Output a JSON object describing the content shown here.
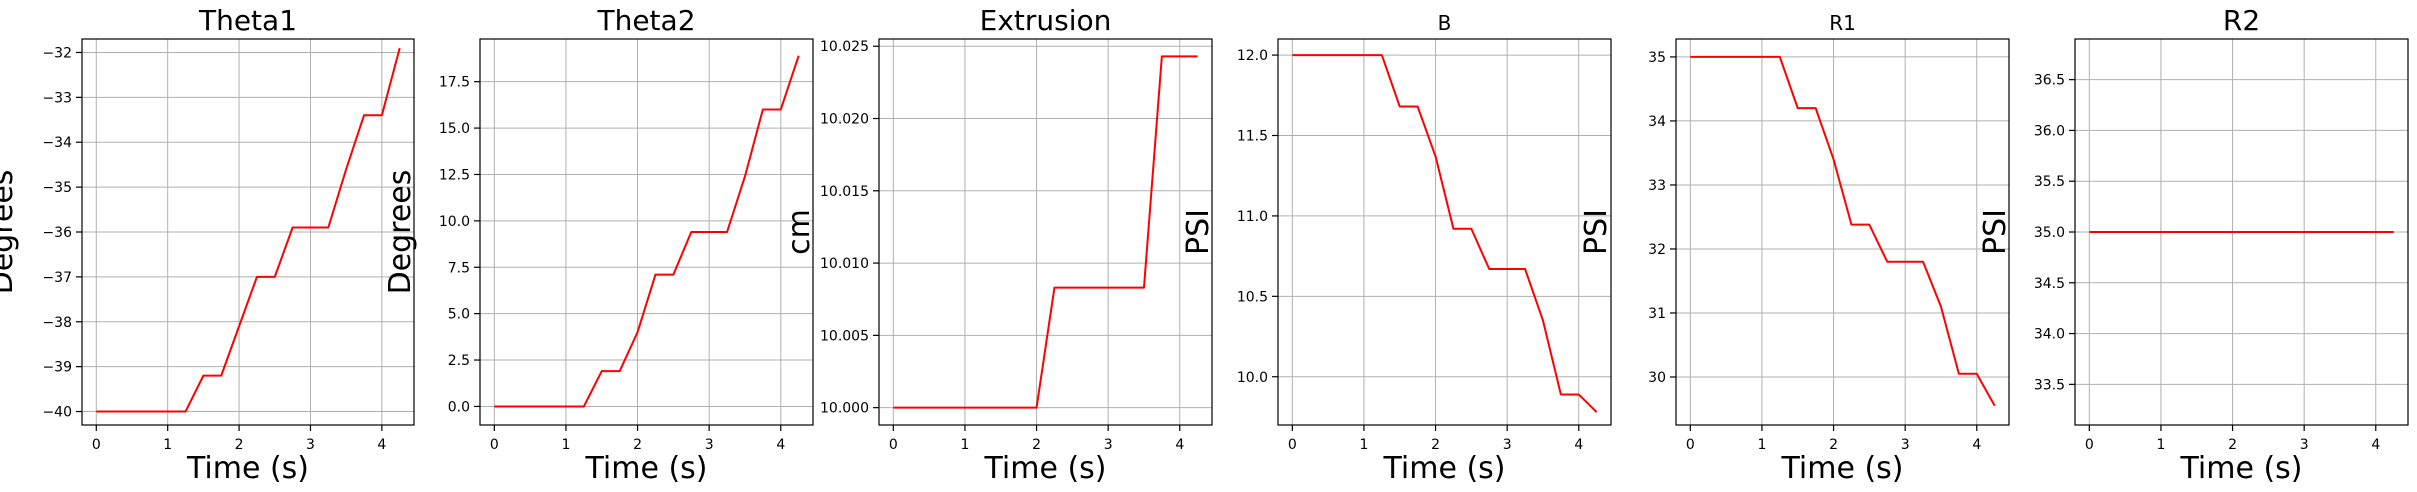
{
  "chart_data": [
    {
      "type": "line",
      "title": "Theta1",
      "xlabel": "Time (s)",
      "ylabel": "Degrees",
      "xlim": [
        -0.2,
        4.45
      ],
      "ylim": [
        -40.3,
        -31.7
      ],
      "xticks": [
        0,
        1,
        2,
        3,
        4
      ],
      "xtick_labels": [
        "0",
        "1",
        "2",
        "3",
        "4"
      ],
      "yticks": [
        -40,
        -39,
        -38,
        -37,
        -36,
        -35,
        -34,
        -33,
        -32
      ],
      "ytick_labels": [
        "−40",
        "−39",
        "−38",
        "−37",
        "−36",
        "−35",
        "−34",
        "−33",
        "−32"
      ],
      "grid": true,
      "series": [
        {
          "color": "#ff0000",
          "x": [
            0,
            1.25,
            1.5,
            1.75,
            2.0,
            2.25,
            2.5,
            2.75,
            3.0,
            3.25,
            3.5,
            3.75,
            4.0,
            4.25
          ],
          "y": [
            -40,
            -40,
            -39.2,
            -39.2,
            -38.1,
            -37.0,
            -37.0,
            -35.9,
            -35.9,
            -35.9,
            -34.6,
            -33.4,
            -33.4,
            -31.9
          ]
        }
      ]
    },
    {
      "type": "line",
      "title": "Theta2",
      "xlabel": "Time (s)",
      "ylabel": "Degrees",
      "xlim": [
        -0.2,
        4.45
      ],
      "ylim": [
        -1.0,
        19.8
      ],
      "xticks": [
        0,
        1,
        2,
        3,
        4
      ],
      "xtick_labels": [
        "0",
        "1",
        "2",
        "3",
        "4"
      ],
      "yticks": [
        0,
        2.5,
        5,
        7.5,
        10,
        12.5,
        15,
        17.5
      ],
      "ytick_labels": [
        "0.0",
        "2.5",
        "5.0",
        "7.5",
        "10.0",
        "12.5",
        "15.0",
        "17.5"
      ],
      "grid": true,
      "series": [
        {
          "color": "#ff0000",
          "x": [
            0,
            1.25,
            1.5,
            1.75,
            2.0,
            2.25,
            2.5,
            2.75,
            3.0,
            3.25,
            3.5,
            3.75,
            4.0,
            4.25
          ],
          "y": [
            0,
            0,
            1.9,
            1.9,
            4.0,
            7.1,
            7.1,
            9.4,
            9.4,
            9.4,
            12.4,
            16.0,
            16.0,
            18.9
          ]
        }
      ]
    },
    {
      "type": "line",
      "title": "Extrusion",
      "xlabel": "Time (s)",
      "ylabel": "cm",
      "xlim": [
        -0.2,
        4.45
      ],
      "ylim": [
        9.9988,
        10.0255
      ],
      "xticks": [
        0,
        1,
        2,
        3,
        4
      ],
      "xtick_labels": [
        "0",
        "1",
        "2",
        "3",
        "4"
      ],
      "yticks": [
        10.0,
        10.005,
        10.01,
        10.015,
        10.02,
        10.025
      ],
      "ytick_labels": [
        "10.000",
        "10.005",
        "10.010",
        "10.015",
        "10.020",
        "10.025"
      ],
      "grid": true,
      "series": [
        {
          "color": "#ff0000",
          "x": [
            0,
            1.25,
            1.5,
            1.75,
            2.0,
            2.25,
            2.5,
            2.75,
            3.0,
            3.25,
            3.5,
            3.75,
            4.0,
            4.25
          ],
          "y": [
            10.0,
            10.0,
            10.0,
            10.0,
            10.0,
            10.0083,
            10.0083,
            10.0083,
            10.0083,
            10.0083,
            10.0083,
            10.0243,
            10.0243,
            10.0243
          ]
        }
      ]
    },
    {
      "type": "line",
      "title": "B",
      "xlabel": "Time (s)",
      "ylabel": "PSI",
      "xlim": [
        -0.2,
        4.45
      ],
      "ylim": [
        9.7,
        12.1
      ],
      "xticks": [
        0,
        1,
        2,
        3,
        4
      ],
      "xtick_labels": [
        "0",
        "1",
        "2",
        "3",
        "4"
      ],
      "yticks": [
        10.0,
        10.5,
        11.0,
        11.5,
        12.0
      ],
      "ytick_labels": [
        "10.0",
        "10.5",
        "11.0",
        "11.5",
        "12.0"
      ],
      "grid": true,
      "series": [
        {
          "color": "#ff0000",
          "x": [
            0,
            1.25,
            1.5,
            1.75,
            2.0,
            2.25,
            2.5,
            2.75,
            3.0,
            3.25,
            3.5,
            3.75,
            4.0,
            4.25
          ],
          "y": [
            12.0,
            12.0,
            11.68,
            11.68,
            11.37,
            10.92,
            10.92,
            10.67,
            10.67,
            10.67,
            10.35,
            9.89,
            9.89,
            9.78
          ]
        }
      ]
    },
    {
      "type": "line",
      "title": "R1",
      "xlabel": "Time (s)",
      "ylabel": "PSI",
      "xlim": [
        -0.2,
        4.45
      ],
      "ylim": [
        29.25,
        35.28
      ],
      "xticks": [
        0,
        1,
        2,
        3,
        4
      ],
      "xtick_labels": [
        "0",
        "1",
        "2",
        "3",
        "4"
      ],
      "yticks": [
        30,
        31,
        32,
        33,
        34,
        35
      ],
      "ytick_labels": [
        "30",
        "31",
        "32",
        "33",
        "34",
        "35"
      ],
      "grid": true,
      "series": [
        {
          "color": "#ff0000",
          "x": [
            0,
            1.25,
            1.5,
            1.75,
            2.0,
            2.25,
            2.5,
            2.75,
            3.0,
            3.25,
            3.5,
            3.75,
            4.0,
            4.25
          ],
          "y": [
            35.0,
            35.0,
            34.2,
            34.2,
            33.4,
            32.38,
            32.38,
            31.8,
            31.8,
            31.8,
            31.1,
            30.05,
            30.05,
            29.55
          ]
        }
      ]
    },
    {
      "type": "line",
      "title": "R2",
      "xlabel": "Time (s)",
      "ylabel": "PSI",
      "xlim": [
        -0.2,
        4.45
      ],
      "ylim": [
        33.1,
        36.9
      ],
      "xticks": [
        0,
        1,
        2,
        3,
        4
      ],
      "xtick_labels": [
        "0",
        "1",
        "2",
        "3",
        "4"
      ],
      "yticks": [
        33.5,
        34.0,
        34.5,
        35.0,
        35.5,
        36.0,
        36.5
      ],
      "ytick_labels": [
        "33.5",
        "34.0",
        "34.5",
        "35.0",
        "35.5",
        "36.0",
        "36.5"
      ],
      "grid": true,
      "series": [
        {
          "color": "#ff0000",
          "x": [
            0,
            1.25,
            1.5,
            1.75,
            2.0,
            2.25,
            2.5,
            2.75,
            3.0,
            3.25,
            3.5,
            3.75,
            4.0,
            4.25
          ],
          "y": [
            35.0,
            35.0,
            35.0,
            35.0,
            35.0,
            35.0,
            35.0,
            35.0,
            35.0,
            35.0,
            35.0,
            35.0,
            35.0,
            35.0
          ]
        }
      ]
    }
  ]
}
